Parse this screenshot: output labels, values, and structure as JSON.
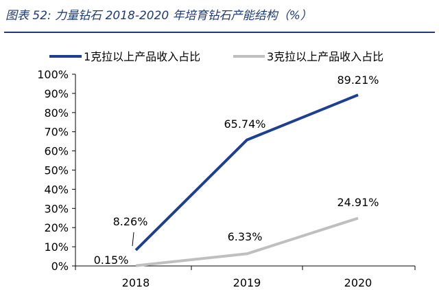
{
  "title": "图表 52:  力量钻石 2018-2020 年培育钻石产能结构（%）",
  "colors": {
    "title": "#1f3a77",
    "series1": "#1c3f94",
    "series2": "#bfbfbf",
    "axis": "#000000"
  },
  "chart_data": {
    "type": "line",
    "title": "图表 52:  力量钻石 2018-2020 年培育钻石产能结构（%）",
    "xlabel": "",
    "ylabel": "",
    "x": [
      "2018",
      "2019",
      "2020"
    ],
    "ylim": [
      0,
      100
    ],
    "yticks": [
      "0%",
      "10%",
      "20%",
      "30%",
      "40%",
      "50%",
      "60%",
      "70%",
      "80%",
      "90%",
      "100%"
    ],
    "grid": false,
    "legend_position": "top",
    "series": [
      {
        "name": "1克拉以上产品收入占比",
        "values": [
          8.26,
          65.74,
          89.21
        ],
        "labels": [
          "8.26%",
          "65.74%",
          "89.21%"
        ]
      },
      {
        "name": "3克拉以上产品收入占比",
        "values": [
          0.15,
          6.33,
          24.91
        ],
        "labels": [
          "0.15%",
          "6.33%",
          "24.91%"
        ]
      }
    ]
  }
}
